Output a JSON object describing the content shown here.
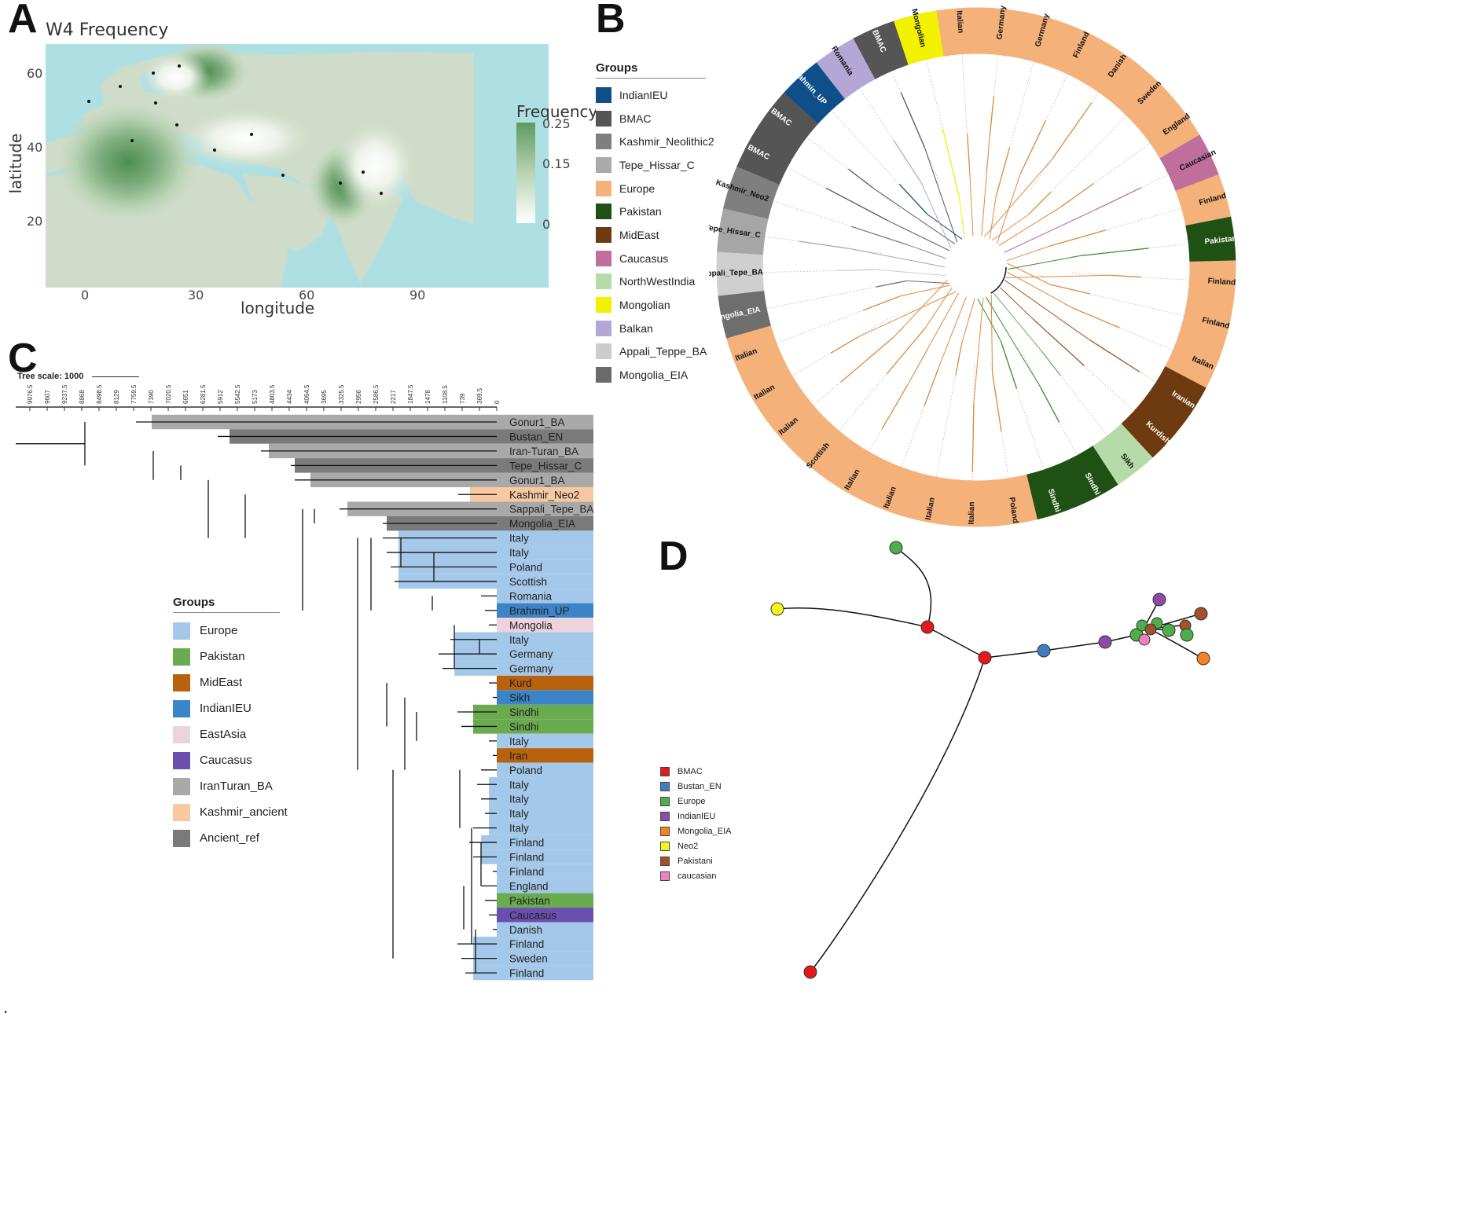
{
  "panels": {
    "a": "A",
    "b": "B",
    "c": "C",
    "d": "D"
  },
  "map": {
    "title": "W4 Frequency",
    "xlabel": "longitude",
    "ylabel": "latitude",
    "xticks": [
      "0",
      "30",
      "60",
      "90"
    ],
    "yticks": [
      "60",
      "40",
      "20"
    ],
    "legend_title": "Frequency",
    "legend_ticks": [
      "0.25",
      "0.15",
      "0"
    ],
    "colors": {
      "sea": "#aee0e3",
      "land": "#cfdcc9",
      "high": "#5e9a5f",
      "low": "#f6f8f3"
    }
  },
  "legendB": {
    "title": "Groups",
    "items": [
      {
        "label": "IndianIEU",
        "color": "#0e4f8a"
      },
      {
        "label": "BMAC",
        "color": "#555555"
      },
      {
        "label": "Kashmir_Neolithic2",
        "color": "#7f7f7f"
      },
      {
        "label": "Tepe_Hissar_C",
        "color": "#aaaaaa"
      },
      {
        "label": "Europe",
        "color": "#f4b27a"
      },
      {
        "label": "Pakistan",
        "color": "#1f5014"
      },
      {
        "label": "MidEast",
        "color": "#6e3a0f"
      },
      {
        "label": "Caucasus",
        "color": "#c06f9c"
      },
      {
        "label": "NorthWestIndia",
        "color": "#b5dca8"
      },
      {
        "label": "Mongolian",
        "color": "#f2f200"
      },
      {
        "label": "Balkan",
        "color": "#b4a7d6"
      },
      {
        "label": "Appali_Teppe_BA",
        "color": "#cccccc"
      },
      {
        "label": "Mongolia_EIA",
        "color": "#6b6b6b"
      }
    ]
  },
  "circular": {
    "segments": [
      {
        "label": "Mongolia_EIA",
        "color": "#6e6e6e"
      },
      {
        "label": "Sappali_Tepe_BA",
        "color": "#cfcfcf"
      },
      {
        "label": "Tepe_Hissar_C",
        "color": "#a6a6a6"
      },
      {
        "label": "Kashmir_Neo2",
        "color": "#7f7f7f"
      },
      {
        "label": "BMAC",
        "color": "#555555"
      },
      {
        "label": "BMAC",
        "color": "#555555"
      },
      {
        "label": "Brahmin_UP",
        "color": "#0e4f8a"
      },
      {
        "label": "Romania",
        "color": "#b4a7d6"
      },
      {
        "label": "BMAC",
        "color": "#555555"
      },
      {
        "label": "Mongolian",
        "color": "#f2f200"
      },
      {
        "label": "Italian",
        "color": "#f4b27a"
      },
      {
        "label": "Germany",
        "color": "#f4b27a"
      },
      {
        "label": "Germany",
        "color": "#f4b27a"
      },
      {
        "label": "Finland",
        "color": "#f4b27a"
      },
      {
        "label": "Danish",
        "color": "#f4b27a"
      },
      {
        "label": "Sweden",
        "color": "#f4b27a"
      },
      {
        "label": "England",
        "color": "#f4b27a"
      },
      {
        "label": "Caucasian",
        "color": "#c06f9c"
      },
      {
        "label": "Finland",
        "color": "#f4b27a"
      },
      {
        "label": "Pakistan",
        "color": "#1f5014"
      },
      {
        "label": "Finland",
        "color": "#f4b27a"
      },
      {
        "label": "Finland",
        "color": "#f4b27a"
      },
      {
        "label": "Italian",
        "color": "#f4b27a"
      },
      {
        "label": "Iranian",
        "color": "#6e3a0f"
      },
      {
        "label": "Kurdish",
        "color": "#6e3a0f"
      },
      {
        "label": "Sikh",
        "color": "#b5dca8"
      },
      {
        "label": "Sindhi",
        "color": "#1f5014"
      },
      {
        "label": "Sindhi",
        "color": "#1f5014"
      },
      {
        "label": "Poland",
        "color": "#f4b27a"
      },
      {
        "label": "Italian",
        "color": "#f4b27a"
      },
      {
        "label": "Italian",
        "color": "#f4b27a"
      },
      {
        "label": "Italian",
        "color": "#f4b27a"
      },
      {
        "label": "Italian",
        "color": "#f4b27a"
      },
      {
        "label": "Scottish",
        "color": "#f4b27a"
      },
      {
        "label": "Italian",
        "color": "#f4b27a"
      },
      {
        "label": "Italian",
        "color": "#f4b27a"
      },
      {
        "label": "Italian",
        "color": "#f4b27a"
      }
    ]
  },
  "treeC": {
    "scale_label": "Tree scale: 1000",
    "axis_ticks": [
      "9976.5",
      "9607",
      "9237.5",
      "8868",
      "8498.5",
      "8129",
      "7759.5",
      "7390",
      "7020.5",
      "6651",
      "6281.5",
      "5912",
      "5542.5",
      "5173",
      "4803.5",
      "4434",
      "4064.5",
      "3695",
      "3325.5",
      "2956",
      "2586.5",
      "2217",
      "1847.5",
      "1478",
      "1108.5",
      "739",
      "369.5",
      "0"
    ],
    "leaves": [
      {
        "label": "Gonur1_BA",
        "color": "#a9a9a9"
      },
      {
        "label": "Bustan_EN",
        "color": "#7a7a7a"
      },
      {
        "label": "Iran-Turan_BA",
        "color": "#a9a9a9"
      },
      {
        "label": "Tepe_Hissar_C",
        "color": "#7a7a7a"
      },
      {
        "label": "Gonur1_BA",
        "color": "#a9a9a9"
      },
      {
        "label": "Kashmir_Neo2",
        "color": "#f8c9a0"
      },
      {
        "label": "Sappali_Tepe_BA",
        "color": "#a9a9a9"
      },
      {
        "label": "Mongolia_EIA",
        "color": "#7a7a7a"
      },
      {
        "label": "Italy",
        "color": "#a4c8ea"
      },
      {
        "label": "Italy",
        "color": "#a4c8ea"
      },
      {
        "label": "Poland",
        "color": "#a4c8ea"
      },
      {
        "label": "Scottish",
        "color": "#a4c8ea"
      },
      {
        "label": "Romania",
        "color": "#a4c8ea"
      },
      {
        "label": "Brahmin_UP",
        "color": "#3b84c7"
      },
      {
        "label": "Mongolia",
        "color": "#ecd3de"
      },
      {
        "label": "Italy",
        "color": "#a4c8ea"
      },
      {
        "label": "Germany",
        "color": "#a4c8ea"
      },
      {
        "label": "Germany",
        "color": "#a4c8ea"
      },
      {
        "label": "Kurd",
        "color": "#b8620e"
      },
      {
        "label": "Sikh",
        "color": "#3b84c7"
      },
      {
        "label": "Sindhi",
        "color": "#6aab4f"
      },
      {
        "label": "Sindhi",
        "color": "#6aab4f"
      },
      {
        "label": "Italy",
        "color": "#a4c8ea"
      },
      {
        "label": "Iran",
        "color": "#b8620e"
      },
      {
        "label": "Poland",
        "color": "#a4c8ea"
      },
      {
        "label": "Italy",
        "color": "#a4c8ea"
      },
      {
        "label": "Italy",
        "color": "#a4c8ea"
      },
      {
        "label": "Italy",
        "color": "#a4c8ea"
      },
      {
        "label": "Italy",
        "color": "#a4c8ea"
      },
      {
        "label": "Finland",
        "color": "#a4c8ea"
      },
      {
        "label": "Finland",
        "color": "#a4c8ea"
      },
      {
        "label": "Finland",
        "color": "#a4c8ea"
      },
      {
        "label": "England",
        "color": "#a4c8ea"
      },
      {
        "label": "Pakistan",
        "color": "#6aab4f"
      },
      {
        "label": "Caucasus",
        "color": "#6a4fb0"
      },
      {
        "label": "Danish",
        "color": "#a4c8ea"
      },
      {
        "label": "Finland",
        "color": "#a4c8ea"
      },
      {
        "label": "Sweden",
        "color": "#a4c8ea"
      },
      {
        "label": "Finland",
        "color": "#a4c8ea"
      }
    ]
  },
  "legendC": {
    "title": "Groups",
    "items": [
      {
        "label": "Europe",
        "color": "#a4c8ea"
      },
      {
        "label": "Pakistan",
        "color": "#6aab4f"
      },
      {
        "label": "MidEast",
        "color": "#b8620e"
      },
      {
        "label": "IndianIEU",
        "color": "#3b84c7"
      },
      {
        "label": "EastAsia",
        "color": "#ecd3de"
      },
      {
        "label": "Caucasus",
        "color": "#6a4fb0"
      },
      {
        "label": "IranTuran_BA",
        "color": "#a9a9a9"
      },
      {
        "label": "Kashmir_ancient",
        "color": "#f8c9a0"
      },
      {
        "label": "Ancient_ref",
        "color": "#7a7a7a"
      }
    ]
  },
  "legendD": {
    "items": [
      {
        "label": "BMAC",
        "color": "#e3191c"
      },
      {
        "label": "Bustan_EN",
        "color": "#3f7fc0"
      },
      {
        "label": "Europe",
        "color": "#4caf4a"
      },
      {
        "label": "IndianIEU",
        "color": "#8e4aa8"
      },
      {
        "label": "Mongolia_EIA",
        "color": "#f58220"
      },
      {
        "label": "Neo2",
        "color": "#f5f51e"
      },
      {
        "label": "Pakistani",
        "color": "#a1522a"
      },
      {
        "label": "caucasian",
        "color": "#ef7fc3"
      }
    ]
  },
  "footer": "."
}
